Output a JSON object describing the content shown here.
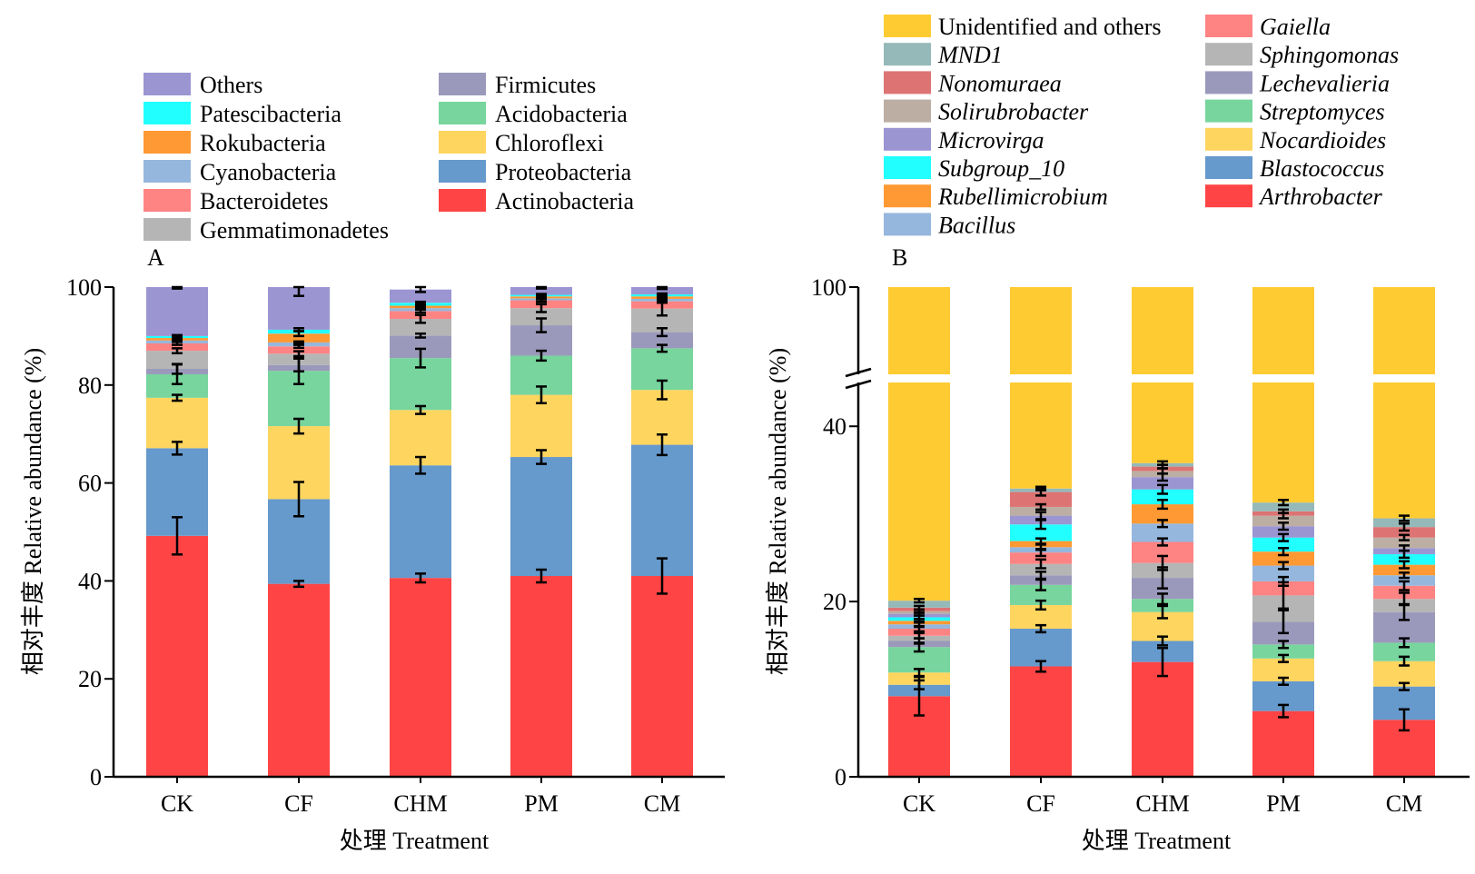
{
  "figure": {
    "panel_a_label": "A",
    "panel_b_label": "B"
  },
  "chart_data": [
    {
      "type": "bar",
      "stacked": true,
      "panel": "A",
      "categories": [
        "CK",
        "CF",
        "CHM",
        "PM",
        "CM"
      ],
      "xlabel": "处理 Treatment",
      "ylabel": "相对丰度 Relative abundance (%)",
      "ylim": [
        0,
        100
      ],
      "yticks": [
        0,
        20,
        40,
        60,
        80,
        100
      ],
      "legend": {
        "columns": [
          [
            "Others",
            "Patescibacteria",
            "Rokubacteria",
            "Cyanobacteria",
            "Bacteroidetes",
            "Gemmatimonadetes"
          ],
          [
            "Firmicutes",
            "Acidobacteria",
            "Chloroflexi",
            "Proteobacteria",
            "Actinobacteria"
          ]
        ],
        "italic": false,
        "placement": "top"
      },
      "series": [
        {
          "name": "Actinobacteria",
          "color": "#fe4444",
          "values": [
            49.2,
            39.4,
            40.6,
            41.0,
            41.0
          ],
          "errors": [
            3.8,
            0.6,
            0.9,
            1.3,
            3.6
          ]
        },
        {
          "name": "Proteobacteria",
          "color": "#6699cc",
          "values": [
            17.9,
            17.3,
            23.0,
            24.3,
            26.8
          ],
          "errors": [
            1.3,
            3.5,
            1.7,
            1.4,
            2.1
          ]
        },
        {
          "name": "Chloroflexi",
          "color": "#fdd55f",
          "values": [
            10.3,
            14.9,
            11.3,
            12.7,
            11.2
          ],
          "errors": [
            0.6,
            1.5,
            0.8,
            1.7,
            1.9
          ]
        },
        {
          "name": "Acidobacteria",
          "color": "#77d59d",
          "values": [
            4.8,
            11.3,
            10.6,
            8.0,
            8.5
          ],
          "errors": [
            2.0,
            2.7,
            1.9,
            1.0,
            0.7
          ]
        },
        {
          "name": "Firmicutes",
          "color": "#9b99bb",
          "values": [
            1.1,
            1.2,
            4.6,
            6.2,
            3.3
          ],
          "errors": [
            1.0,
            1.3,
            0.4,
            1.4,
            0.8
          ]
        },
        {
          "name": "Gemmatimonadetes",
          "color": "#b5b5b5",
          "values": [
            3.7,
            2.3,
            3.4,
            3.5,
            4.8
          ],
          "errors": [
            0.5,
            0.5,
            0.8,
            0.8,
            1.4
          ]
        },
        {
          "name": "Bacteroidetes",
          "color": "#fe8383",
          "values": [
            1.5,
            1.5,
            1.6,
            1.6,
            1.5
          ],
          "errors": [
            0.3,
            0.3,
            0.3,
            0.3,
            0.3
          ]
        },
        {
          "name": "Cyanobacteria",
          "color": "#96b7dd",
          "values": [
            0.6,
            0.8,
            0.6,
            0.4,
            0.5
          ],
          "errors": [
            0.2,
            0.2,
            0.2,
            0.2,
            0.2
          ]
        },
        {
          "name": "Rokubacteria",
          "color": "#fe9933",
          "values": [
            0.5,
            1.8,
            0.5,
            0.4,
            0.5
          ],
          "errors": [
            0.2,
            0.5,
            0.2,
            0.2,
            0.2
          ]
        },
        {
          "name": "Patescibacteria",
          "color": "#22ffff",
          "values": [
            0.4,
            0.8,
            0.6,
            0.3,
            0.4
          ],
          "errors": [
            0.2,
            0.3,
            0.2,
            0.2,
            0.2
          ]
        },
        {
          "name": "Others",
          "color": "#9b95d2",
          "values": [
            10.0,
            8.7,
            2.7,
            1.6,
            1.5
          ],
          "errors": [
            0.3,
            1.8,
            0.5,
            0.3,
            0.4
          ]
        }
      ]
    },
    {
      "type": "bar",
      "stacked": true,
      "panel": "B",
      "categories": [
        "CK",
        "CF",
        "CHM",
        "PM",
        "CM"
      ],
      "xlabel": "处理 Treatment",
      "ylabel": "相对丰度 Relative abundance (%)",
      "ylim": [
        0,
        100
      ],
      "axis_break": [
        45,
        85
      ],
      "yticks": [
        0,
        20,
        40,
        100
      ],
      "legend": {
        "columns": [
          [
            "Unidentified and others",
            "MND1",
            "Nonomuraea",
            "Solirubrobacter",
            "Microvirga",
            "Subgroup_10",
            "Rubellimicrobium",
            "Bacillus"
          ],
          [
            "Gaiella",
            "Sphingomonas",
            "Lechevalieria",
            "Streptomyces",
            "Nocardioides",
            "Blastococcus",
            "Arthrobacter"
          ]
        ],
        "italic_except_first": true,
        "placement": "top"
      },
      "series": [
        {
          "name": "Arthrobacter",
          "color": "#fe4444",
          "values": [
            9.2,
            12.6,
            13.1,
            7.5,
            6.5
          ],
          "errors": [
            2.2,
            0.6,
            1.6,
            0.7,
            1.2
          ]
        },
        {
          "name": "Blastococcus",
          "color": "#6699cc",
          "values": [
            1.3,
            4.3,
            2.4,
            3.4,
            3.8
          ],
          "errors": [
            0.5,
            0.4,
            0.5,
            0.4,
            0.4
          ]
        },
        {
          "name": "Nocardioides",
          "color": "#fdd55f",
          "values": [
            1.4,
            2.7,
            3.3,
            2.6,
            2.9
          ],
          "errors": [
            0.4,
            0.5,
            0.7,
            0.4,
            0.5
          ]
        },
        {
          "name": "Streptomyces",
          "color": "#77d59d",
          "values": [
            2.9,
            2.3,
            1.5,
            1.6,
            2.1
          ],
          "errors": [
            0.5,
            0.6,
            0.6,
            0.4,
            0.5
          ]
        },
        {
          "name": "Lechevalieria",
          "color": "#9b99bb",
          "values": [
            0.7,
            1.1,
            2.4,
            2.6,
            3.5
          ],
          "errors": [
            0.3,
            0.4,
            1.2,
            1.3,
            0.9
          ]
        },
        {
          "name": "Sphingomonas",
          "color": "#b5b5b5",
          "values": [
            0.6,
            1.3,
            1.7,
            3.0,
            1.5
          ],
          "errors": [
            0.3,
            0.5,
            0.8,
            1.5,
            0.7
          ]
        },
        {
          "name": "Gaiella",
          "color": "#fe8383",
          "values": [
            0.8,
            1.3,
            2.4,
            1.6,
            1.5
          ],
          "errors": [
            0.3,
            0.4,
            0.4,
            0.5,
            0.5
          ]
        },
        {
          "name": "Bacillus",
          "color": "#96b7dd",
          "values": [
            0.5,
            0.6,
            2.1,
            1.8,
            1.2
          ],
          "errors": [
            0.3,
            0.3,
            0.4,
            0.4,
            0.3
          ]
        },
        {
          "name": "Rubellimicrobium",
          "color": "#fe9933",
          "values": [
            0.4,
            0.7,
            2.2,
            1.6,
            1.2
          ],
          "errors": [
            0.2,
            0.3,
            0.5,
            0.4,
            0.4
          ]
        },
        {
          "name": "Subgroup_10",
          "color": "#22ffff",
          "values": [
            0.4,
            1.9,
            1.7,
            1.6,
            1.2
          ],
          "errors": [
            0.2,
            0.5,
            0.5,
            0.4,
            0.4
          ]
        },
        {
          "name": "Microvirga",
          "color": "#9b95d2",
          "values": [
            0.4,
            1.0,
            1.4,
            1.3,
            0.7
          ],
          "errors": [
            0.2,
            0.4,
            0.4,
            0.4,
            0.3
          ]
        },
        {
          "name": "Solirubrobacter",
          "color": "#bcaea3",
          "values": [
            0.3,
            1.0,
            0.7,
            1.2,
            1.2
          ],
          "errors": [
            0.2,
            0.3,
            0.3,
            0.3,
            0.3
          ]
        },
        {
          "name": "Nonomuraea",
          "color": "#dd7373",
          "values": [
            0.4,
            1.7,
            0.5,
            0.5,
            1.2
          ],
          "errors": [
            0.2,
            0.4,
            0.2,
            0.2,
            0.4
          ]
        },
        {
          "name": "MND1",
          "color": "#95b9b9",
          "values": [
            0.8,
            0.4,
            0.4,
            1.0,
            1.0
          ],
          "errors": [
            0.2,
            0.2,
            0.2,
            0.3,
            0.3
          ]
        },
        {
          "name": "Unidentified and others",
          "color": "#fecb33",
          "values": [
            80.3,
            67.8,
            64.8,
            68.7,
            70.5
          ],
          "errors": [
            1.9,
            1.9,
            0.6,
            0.9,
            0.6
          ]
        }
      ]
    }
  ]
}
